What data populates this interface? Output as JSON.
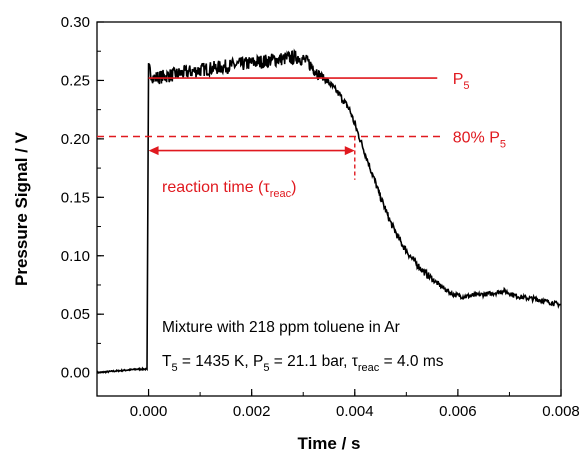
{
  "chart_data": {
    "type": "line",
    "title": "",
    "xlabel": "Time / s",
    "ylabel": "Pressure Signal / V",
    "xlim": [
      -0.001,
      0.008
    ],
    "ylim": [
      -0.02,
      0.3
    ],
    "x_ticks": [
      "0.000",
      "0.002",
      "0.004",
      "0.006",
      "0.008"
    ],
    "y_ticks": [
      "0.00",
      "0.05",
      "0.10",
      "0.15",
      "0.20",
      "0.25",
      "0.30"
    ],
    "grid": false,
    "colors": {
      "trace": "#000000",
      "annotation": "#e0191f"
    },
    "series": [
      {
        "x": [
          -0.001,
          -0.0002,
          -3e-05,
          0.0,
          0.0001,
          0.0005,
          0.001,
          0.0015,
          0.002,
          0.0025,
          0.0029,
          0.003,
          0.0031,
          0.0033,
          0.0035,
          0.0037,
          0.0039,
          0.0041,
          0.0043,
          0.0045,
          0.0047,
          0.0049,
          0.0051,
          0.0053,
          0.0055,
          0.0057,
          0.0059,
          0.0061,
          0.0063,
          0.0065,
          0.0067,
          0.0069,
          0.0071,
          0.0073,
          0.0075,
          0.0077,
          0.0079,
          0.008
        ],
        "y": [
          0.0,
          0.003,
          0.003,
          0.26,
          0.252,
          0.255,
          0.259,
          0.262,
          0.265,
          0.268,
          0.27,
          0.268,
          0.265,
          0.256,
          0.248,
          0.238,
          0.225,
          0.2,
          0.175,
          0.15,
          0.128,
          0.111,
          0.098,
          0.088,
          0.08,
          0.073,
          0.067,
          0.065,
          0.066,
          0.067,
          0.068,
          0.07,
          0.066,
          0.064,
          0.063,
          0.061,
          0.059,
          0.058
        ]
      }
    ],
    "annotations": {
      "p5": {
        "value": 0.252,
        "label_main": "P",
        "label_sub": "5"
      },
      "p80": {
        "value": 0.202,
        "label_main": "80% P",
        "label_sub": "5"
      },
      "reaction_time": {
        "from": 0.0,
        "to": 0.004,
        "label_pre": "reaction time (τ",
        "label_sub": "reac",
        "label_post": ")"
      },
      "info_line1": "Mixture with 218 ppm toluene in Ar",
      "info_line2": [
        {
          "t": "T"
        },
        {
          "t": "5",
          "sub": true
        },
        {
          "t": " = 1435 K, P"
        },
        {
          "t": "5",
          "sub": true
        },
        {
          "t": " = 21.1 bar, τ"
        },
        {
          "t": "reac",
          "sub": true
        },
        {
          "t": " = 4.0 ms"
        }
      ]
    }
  }
}
